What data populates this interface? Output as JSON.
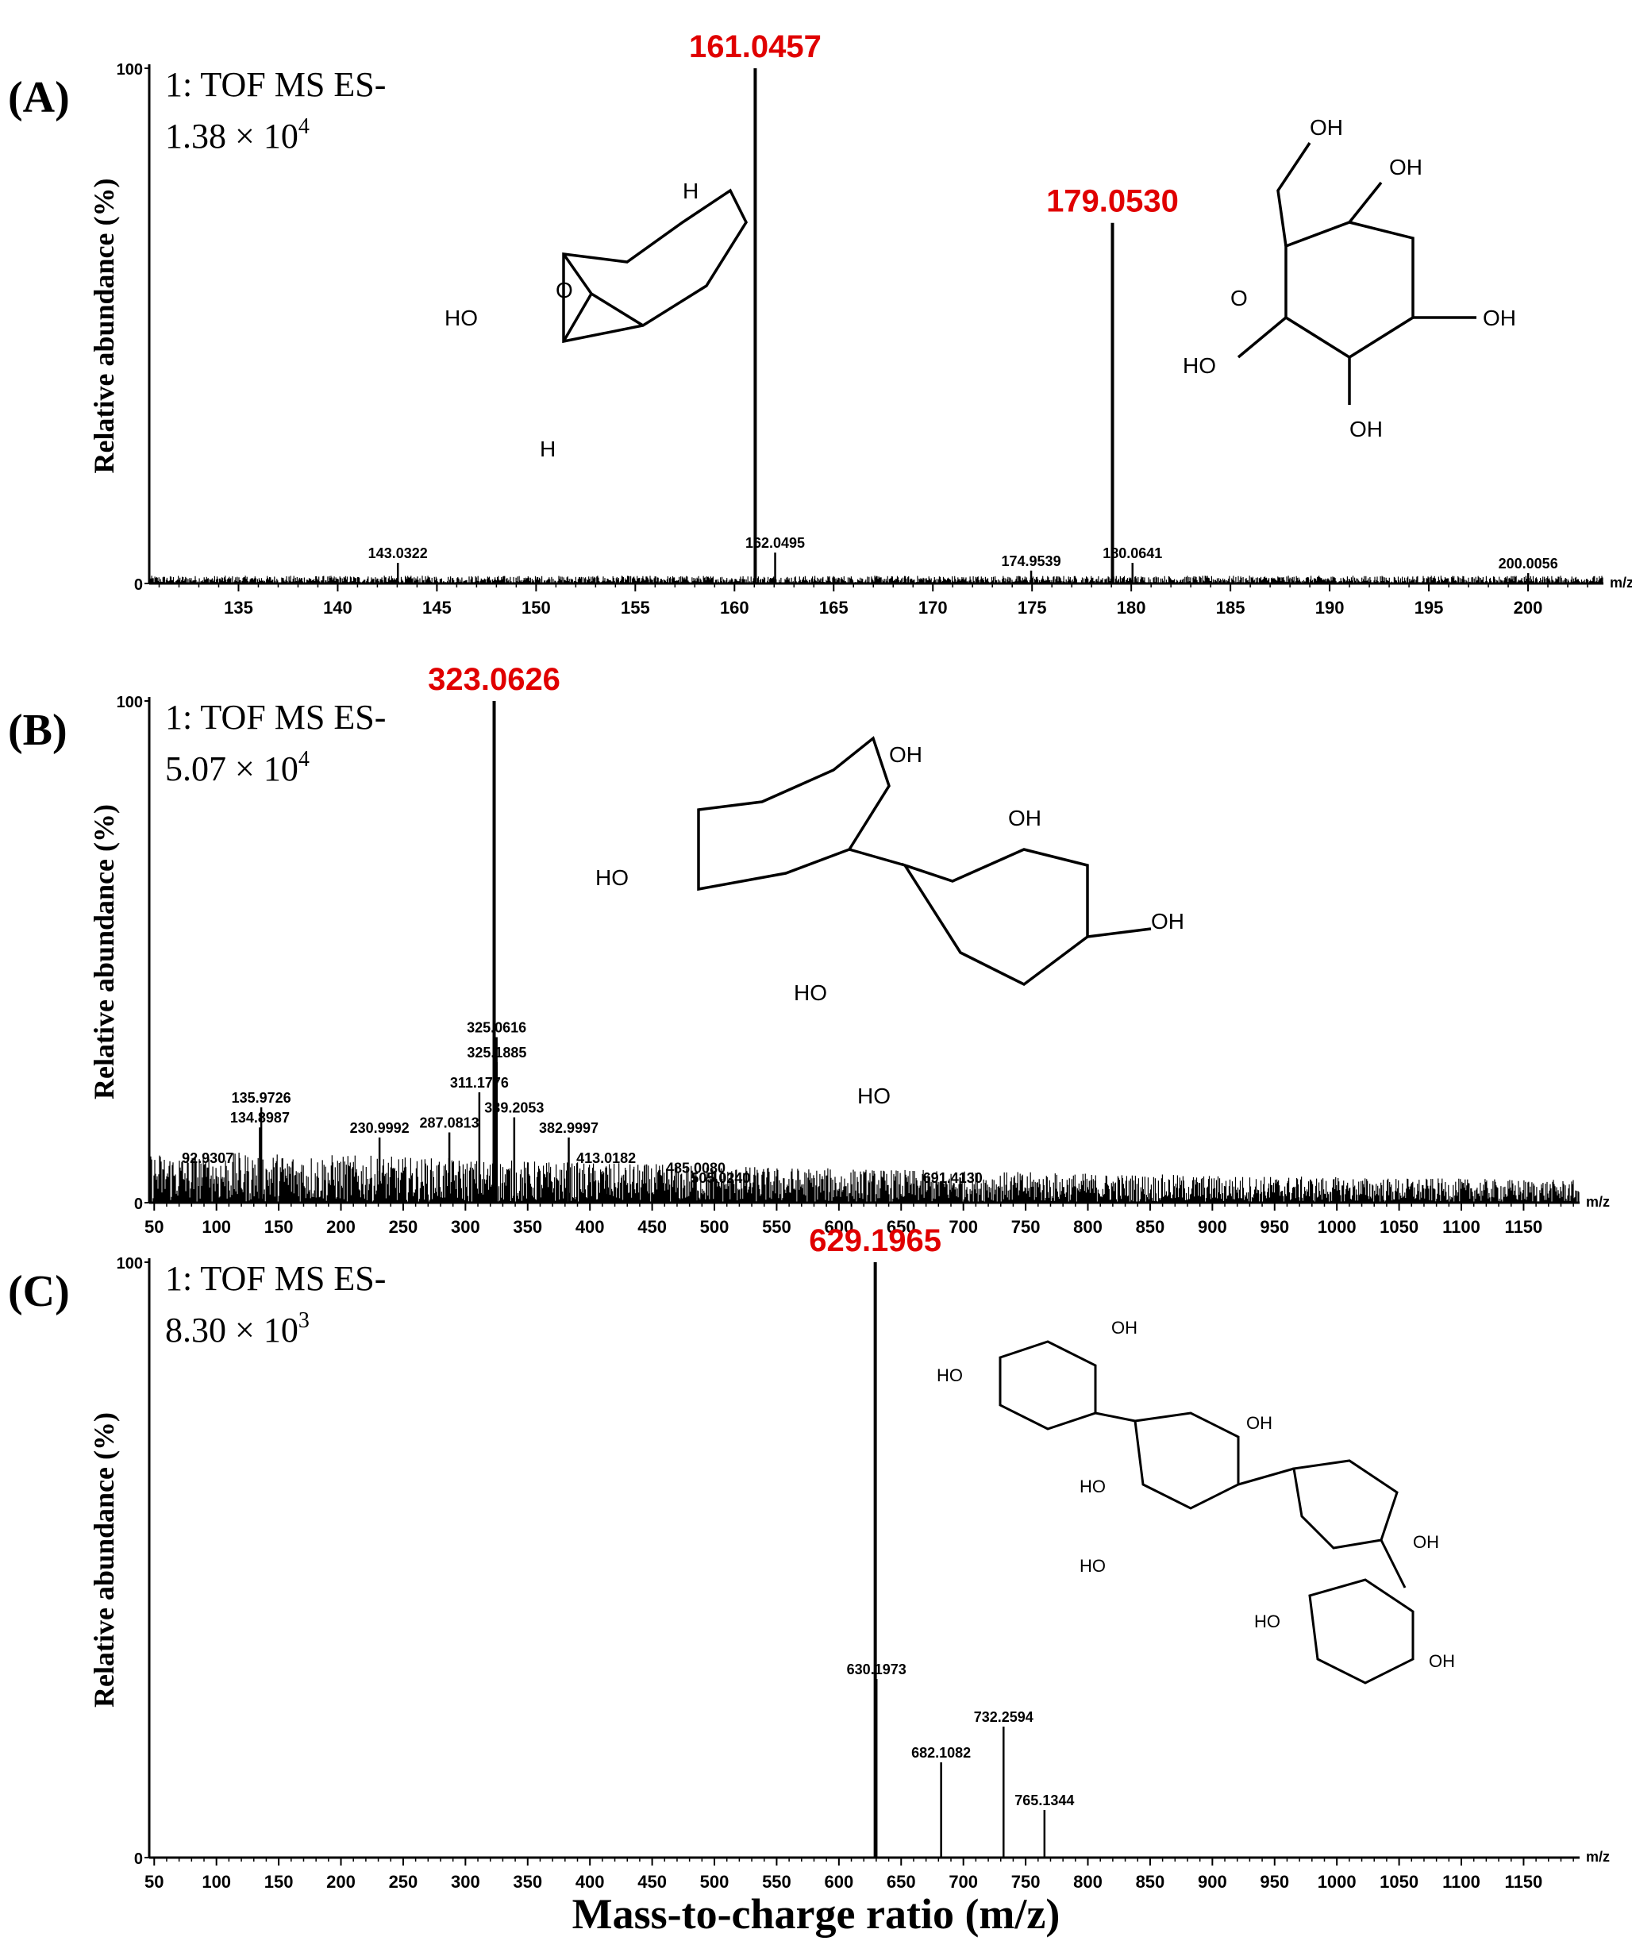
{
  "figure": {
    "xlabel": "Mass-to-charge ratio (m/z)"
  },
  "chart_data": [
    {
      "type": "mass_spectrum",
      "panel_label": "(A)",
      "instrument_line": "1: TOF MS ES-",
      "intensity_label": "1.38 × 10",
      "intensity_exp": "4",
      "ylabel": "Relative abundance (%)",
      "unit_label": "m/z",
      "xlim": [
        130.5,
        203.8
      ],
      "ylim": [
        0,
        100
      ],
      "y_ticks": [
        "0",
        "100"
      ],
      "x_ticks": [
        135,
        140,
        145,
        150,
        155,
        160,
        165,
        170,
        175,
        180,
        185,
        190,
        195,
        200
      ],
      "major_peaks": [
        {
          "mz": 161.0457,
          "label": "161.0457",
          "abundance": 100
        },
        {
          "mz": 179.053,
          "label": "179.0530",
          "abundance": 70
        }
      ],
      "minor_peaks": [
        {
          "mz": 143.0322,
          "label": "143.0322",
          "abundance": 4
        },
        {
          "mz": 162.0495,
          "label": "162.0495",
          "abundance": 6
        },
        {
          "mz": 174.9539,
          "label": "174.9539",
          "abundance": 2.5
        },
        {
          "mz": 180.0641,
          "label": "180.0641",
          "abundance": 4
        },
        {
          "mz": 200.0056,
          "label": "200.0056",
          "abundance": 2
        }
      ],
      "noise_level": 1.5,
      "structure": "levoglucosan-glucose",
      "major_color": "#e00000"
    },
    {
      "type": "mass_spectrum",
      "panel_label": "(B)",
      "instrument_line": "1: TOF MS ES-",
      "intensity_label": "5.07 × 10",
      "intensity_exp": "4",
      "ylabel": "Relative abundance (%)",
      "unit_label": "m/z",
      "xlim": [
        46,
        1195
      ],
      "ylim": [
        0,
        100
      ],
      "y_ticks": [
        "0",
        "100"
      ],
      "x_ticks": [
        50,
        100,
        150,
        200,
        250,
        300,
        350,
        400,
        450,
        500,
        550,
        600,
        650,
        700,
        750,
        800,
        850,
        900,
        950,
        1000,
        1050,
        1100,
        1150
      ],
      "major_peaks": [
        {
          "mz": 323.0626,
          "label": "323.0626",
          "abundance": 100
        }
      ],
      "minor_peaks": [
        {
          "mz": 92.9307,
          "label": "92.9307",
          "abundance": 7
        },
        {
          "mz": 134.8987,
          "label": "134.8987",
          "abundance": 15
        },
        {
          "mz": 135.9726,
          "label": "135.9726",
          "abundance": 19
        },
        {
          "mz": 230.9992,
          "label": "230.9992",
          "abundance": 13
        },
        {
          "mz": 287.0813,
          "label": "287.0813",
          "abundance": 14
        },
        {
          "mz": 311.1776,
          "label": "311.1776",
          "abundance": 22
        },
        {
          "mz": 325.0616,
          "label": "325.0616",
          "abundance": 33
        },
        {
          "mz": 325.1885,
          "label": "325.1885",
          "abundance": 28
        },
        {
          "mz": 339.2053,
          "label": "339.2053",
          "abundance": 17
        },
        {
          "mz": 382.9997,
          "label": "382.9997",
          "abundance": 13
        },
        {
          "mz": 413.0182,
          "label": "413.0182",
          "abundance": 7
        },
        {
          "mz": 485.008,
          "label": "485.0080",
          "abundance": 5
        },
        {
          "mz": 505.024,
          "label": "505.0240",
          "abundance": 3
        },
        {
          "mz": 691.413,
          "label": "691.4130",
          "abundance": 3
        }
      ],
      "noise_level": 8,
      "structure": "levoglucosan-glucose-disaccharide",
      "major_color": "#e00000"
    },
    {
      "type": "mass_spectrum",
      "panel_label": "(C)",
      "instrument_line": "1: TOF MS ES-",
      "intensity_label": "8.30 × 10",
      "intensity_exp": "3",
      "ylabel": "Relative abundance (%)",
      "unit_label": "m/z",
      "xlim": [
        46,
        1195
      ],
      "ylim": [
        0,
        100
      ],
      "y_ticks": [
        "0",
        "100"
      ],
      "x_ticks": [
        50,
        100,
        150,
        200,
        250,
        300,
        350,
        400,
        450,
        500,
        550,
        600,
        650,
        700,
        750,
        800,
        850,
        900,
        950,
        1000,
        1050,
        1100,
        1150
      ],
      "major_peaks": [
        {
          "mz": 629.1965,
          "label": "629.1965",
          "abundance": 100
        }
      ],
      "minor_peaks": [
        {
          "mz": 630.1973,
          "label": "630.1973",
          "abundance": 30
        },
        {
          "mz": 682.1082,
          "label": "682.1082",
          "abundance": 16
        },
        {
          "mz": 732.2594,
          "label": "732.2594",
          "abundance": 22
        },
        {
          "mz": 765.1344,
          "label": "765.1344",
          "abundance": 8
        }
      ],
      "noise_level": 0,
      "structure": "tetrasaccharide",
      "major_color": "#e00000"
    }
  ]
}
